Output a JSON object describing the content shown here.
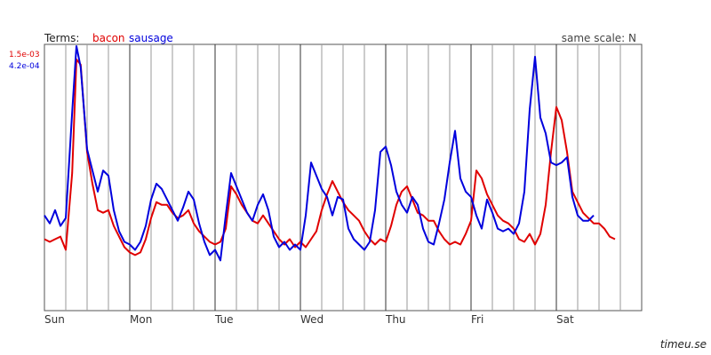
{
  "header": {
    "terms_label": "Terms:",
    "terms": [
      {
        "label": "bacon",
        "color": "#e00000"
      },
      {
        "label": "sausage",
        "color": "#0000dd"
      }
    ],
    "same_scale_label": "same scale: N"
  },
  "footer": {
    "brand": "timeu.se"
  },
  "chart_data": {
    "type": "line",
    "title": "",
    "xlabel": "",
    "ylabel": "",
    "x_categories": [
      "Sun",
      "Mon",
      "Tue",
      "Wed",
      "Thu",
      "Fri",
      "Sat"
    ],
    "x_range": [
      0,
      28
    ],
    "grid": "vertical gridlines every quarter day",
    "legend": "top-left",
    "series": [
      {
        "name": "bacon",
        "color": "#e00000",
        "scale_max": "1.5e-03",
        "values": [
          [
            0,
            0.27
          ],
          [
            0.25,
            0.26
          ],
          [
            0.5,
            0.27
          ],
          [
            0.75,
            0.28
          ],
          [
            1,
            0.23
          ],
          [
            1.3,
            0.52
          ],
          [
            1.5,
            0.95
          ],
          [
            1.7,
            0.93
          ],
          [
            2,
            0.6
          ],
          [
            2.25,
            0.48
          ],
          [
            2.5,
            0.38
          ],
          [
            2.75,
            0.37
          ],
          [
            3,
            0.38
          ],
          [
            3.25,
            0.32
          ],
          [
            3.5,
            0.28
          ],
          [
            3.75,
            0.24
          ],
          [
            4,
            0.22
          ],
          [
            4.25,
            0.21
          ],
          [
            4.5,
            0.22
          ],
          [
            4.75,
            0.27
          ],
          [
            5,
            0.35
          ],
          [
            5.25,
            0.41
          ],
          [
            5.5,
            0.4
          ],
          [
            5.75,
            0.4
          ],
          [
            6,
            0.37
          ],
          [
            6.25,
            0.35
          ],
          [
            6.5,
            0.36
          ],
          [
            6.75,
            0.38
          ],
          [
            7,
            0.33
          ],
          [
            7.25,
            0.3
          ],
          [
            7.5,
            0.28
          ],
          [
            7.75,
            0.26
          ],
          [
            8,
            0.25
          ],
          [
            8.25,
            0.26
          ],
          [
            8.5,
            0.31
          ],
          [
            8.75,
            0.47
          ],
          [
            9,
            0.44
          ],
          [
            9.25,
            0.4
          ],
          [
            9.5,
            0.37
          ],
          [
            9.75,
            0.34
          ],
          [
            10,
            0.33
          ],
          [
            10.25,
            0.36
          ],
          [
            10.5,
            0.33
          ],
          [
            10.75,
            0.3
          ],
          [
            11,
            0.27
          ],
          [
            11.25,
            0.25
          ],
          [
            11.5,
            0.27
          ],
          [
            11.75,
            0.24
          ],
          [
            12,
            0.26
          ],
          [
            12.25,
            0.24
          ],
          [
            12.5,
            0.27
          ],
          [
            12.75,
            0.3
          ],
          [
            13,
            0.38
          ],
          [
            13.25,
            0.44
          ],
          [
            13.5,
            0.49
          ],
          [
            13.75,
            0.45
          ],
          [
            14,
            0.41
          ],
          [
            14.25,
            0.38
          ],
          [
            14.5,
            0.36
          ],
          [
            14.75,
            0.34
          ],
          [
            15,
            0.3
          ],
          [
            15.25,
            0.27
          ],
          [
            15.5,
            0.25
          ],
          [
            15.75,
            0.27
          ],
          [
            16,
            0.26
          ],
          [
            16.25,
            0.32
          ],
          [
            16.5,
            0.4
          ],
          [
            16.75,
            0.45
          ],
          [
            17,
            0.47
          ],
          [
            17.25,
            0.42
          ],
          [
            17.5,
            0.37
          ],
          [
            17.75,
            0.36
          ],
          [
            18,
            0.34
          ],
          [
            18.25,
            0.34
          ],
          [
            18.5,
            0.3
          ],
          [
            18.75,
            0.27
          ],
          [
            19,
            0.25
          ],
          [
            19.25,
            0.26
          ],
          [
            19.5,
            0.25
          ],
          [
            19.75,
            0.29
          ],
          [
            20,
            0.34
          ],
          [
            20.25,
            0.53
          ],
          [
            20.5,
            0.5
          ],
          [
            20.75,
            0.44
          ],
          [
            21,
            0.4
          ],
          [
            21.25,
            0.36
          ],
          [
            21.5,
            0.34
          ],
          [
            21.75,
            0.33
          ],
          [
            22,
            0.31
          ],
          [
            22.25,
            0.27
          ],
          [
            22.5,
            0.26
          ],
          [
            22.75,
            0.29
          ],
          [
            23,
            0.25
          ],
          [
            23.25,
            0.29
          ],
          [
            23.5,
            0.4
          ],
          [
            23.75,
            0.6
          ],
          [
            24,
            0.77
          ],
          [
            24.25,
            0.72
          ],
          [
            24.5,
            0.6
          ],
          [
            24.75,
            0.45
          ],
          [
            25,
            0.41
          ],
          [
            25.25,
            0.37
          ],
          [
            25.5,
            0.35
          ],
          [
            25.75,
            0.33
          ],
          [
            26,
            0.33
          ],
          [
            26.25,
            0.31
          ],
          [
            26.5,
            0.28
          ],
          [
            26.75,
            0.27
          ]
        ]
      },
      {
        "name": "sausage",
        "color": "#0000dd",
        "scale_max": "4.2e-04",
        "values": [
          [
            0,
            0.36
          ],
          [
            0.25,
            0.33
          ],
          [
            0.5,
            0.38
          ],
          [
            0.75,
            0.32
          ],
          [
            1,
            0.35
          ],
          [
            1.3,
            0.75
          ],
          [
            1.5,
            1.0
          ],
          [
            1.7,
            0.92
          ],
          [
            2,
            0.61
          ],
          [
            2.25,
            0.53
          ],
          [
            2.5,
            0.45
          ],
          [
            2.75,
            0.53
          ],
          [
            3,
            0.51
          ],
          [
            3.25,
            0.38
          ],
          [
            3.5,
            0.3
          ],
          [
            3.75,
            0.26
          ],
          [
            4,
            0.25
          ],
          [
            4.25,
            0.23
          ],
          [
            4.5,
            0.26
          ],
          [
            4.75,
            0.32
          ],
          [
            5,
            0.42
          ],
          [
            5.25,
            0.48
          ],
          [
            5.5,
            0.46
          ],
          [
            5.75,
            0.42
          ],
          [
            6,
            0.38
          ],
          [
            6.25,
            0.34
          ],
          [
            6.5,
            0.39
          ],
          [
            6.75,
            0.45
          ],
          [
            7,
            0.42
          ],
          [
            7.25,
            0.33
          ],
          [
            7.5,
            0.26
          ],
          [
            7.75,
            0.21
          ],
          [
            8,
            0.23
          ],
          [
            8.25,
            0.19
          ],
          [
            8.5,
            0.36
          ],
          [
            8.75,
            0.52
          ],
          [
            9,
            0.47
          ],
          [
            9.25,
            0.42
          ],
          [
            9.5,
            0.37
          ],
          [
            9.75,
            0.34
          ],
          [
            10,
            0.4
          ],
          [
            10.25,
            0.44
          ],
          [
            10.5,
            0.38
          ],
          [
            10.75,
            0.28
          ],
          [
            11,
            0.24
          ],
          [
            11.25,
            0.26
          ],
          [
            11.5,
            0.23
          ],
          [
            11.75,
            0.25
          ],
          [
            12,
            0.23
          ],
          [
            12.25,
            0.36
          ],
          [
            12.5,
            0.56
          ],
          [
            12.75,
            0.51
          ],
          [
            13,
            0.46
          ],
          [
            13.25,
            0.43
          ],
          [
            13.5,
            0.36
          ],
          [
            13.75,
            0.43
          ],
          [
            14,
            0.42
          ],
          [
            14.25,
            0.31
          ],
          [
            14.5,
            0.27
          ],
          [
            14.75,
            0.25
          ],
          [
            15,
            0.23
          ],
          [
            15.25,
            0.26
          ],
          [
            15.5,
            0.38
          ],
          [
            15.75,
            0.6
          ],
          [
            16,
            0.62
          ],
          [
            16.25,
            0.55
          ],
          [
            16.5,
            0.45
          ],
          [
            16.75,
            0.4
          ],
          [
            17,
            0.37
          ],
          [
            17.25,
            0.43
          ],
          [
            17.5,
            0.4
          ],
          [
            17.75,
            0.31
          ],
          [
            18,
            0.26
          ],
          [
            18.25,
            0.25
          ],
          [
            18.5,
            0.33
          ],
          [
            18.75,
            0.42
          ],
          [
            19,
            0.56
          ],
          [
            19.25,
            0.68
          ],
          [
            19.5,
            0.5
          ],
          [
            19.75,
            0.45
          ],
          [
            20,
            0.43
          ],
          [
            20.25,
            0.36
          ],
          [
            20.5,
            0.31
          ],
          [
            20.75,
            0.42
          ],
          [
            21,
            0.37
          ],
          [
            21.25,
            0.31
          ],
          [
            21.5,
            0.3
          ],
          [
            21.75,
            0.31
          ],
          [
            22,
            0.29
          ],
          [
            22.25,
            0.33
          ],
          [
            22.5,
            0.45
          ],
          [
            22.75,
            0.76
          ],
          [
            23,
            0.96
          ],
          [
            23.25,
            0.73
          ],
          [
            23.5,
            0.67
          ],
          [
            23.75,
            0.56
          ],
          [
            24,
            0.55
          ],
          [
            24.25,
            0.56
          ],
          [
            24.5,
            0.58
          ],
          [
            24.75,
            0.43
          ],
          [
            25,
            0.36
          ],
          [
            25.25,
            0.34
          ],
          [
            25.5,
            0.34
          ],
          [
            25.75,
            0.36
          ]
        ]
      }
    ]
  }
}
